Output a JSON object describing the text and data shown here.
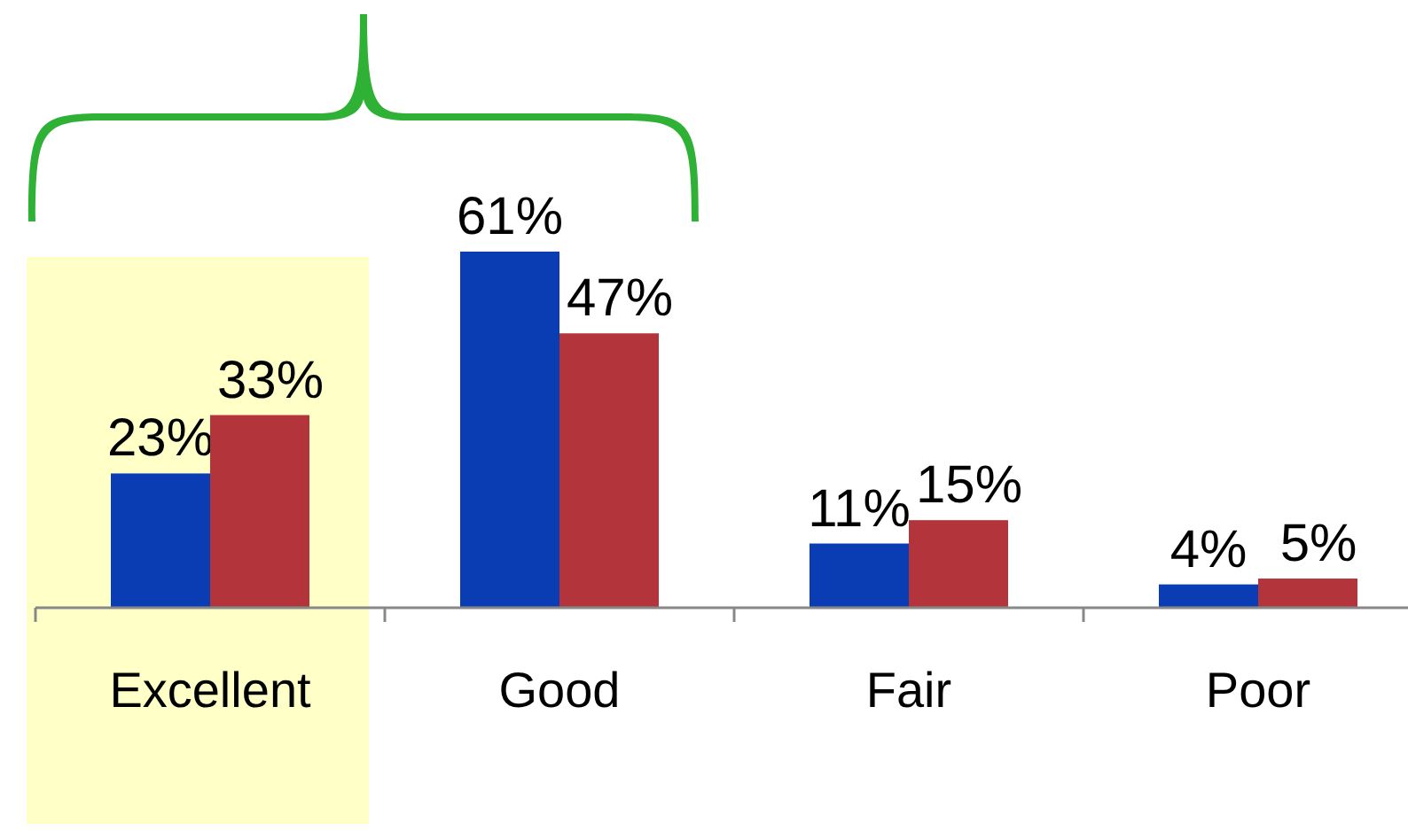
{
  "chart_data": {
    "type": "bar",
    "categories": [
      "Excellent",
      "Good",
      "Fair",
      "Poor"
    ],
    "series": [
      {
        "color": "#0a3cb4",
        "values": [
          23,
          61,
          11,
          4
        ],
        "value_labels": [
          "23%",
          "61%",
          "11%",
          "4%"
        ]
      },
      {
        "color": "#b3343a",
        "values": [
          33,
          47,
          15,
          5
        ],
        "value_labels": [
          "33%",
          "47%",
          "15%",
          "5%"
        ]
      }
    ],
    "bands": [
      {
        "axis": "x",
        "from": "Excellent",
        "to": "Excellent",
        "color": "#ffffc8"
      }
    ]
  }
}
